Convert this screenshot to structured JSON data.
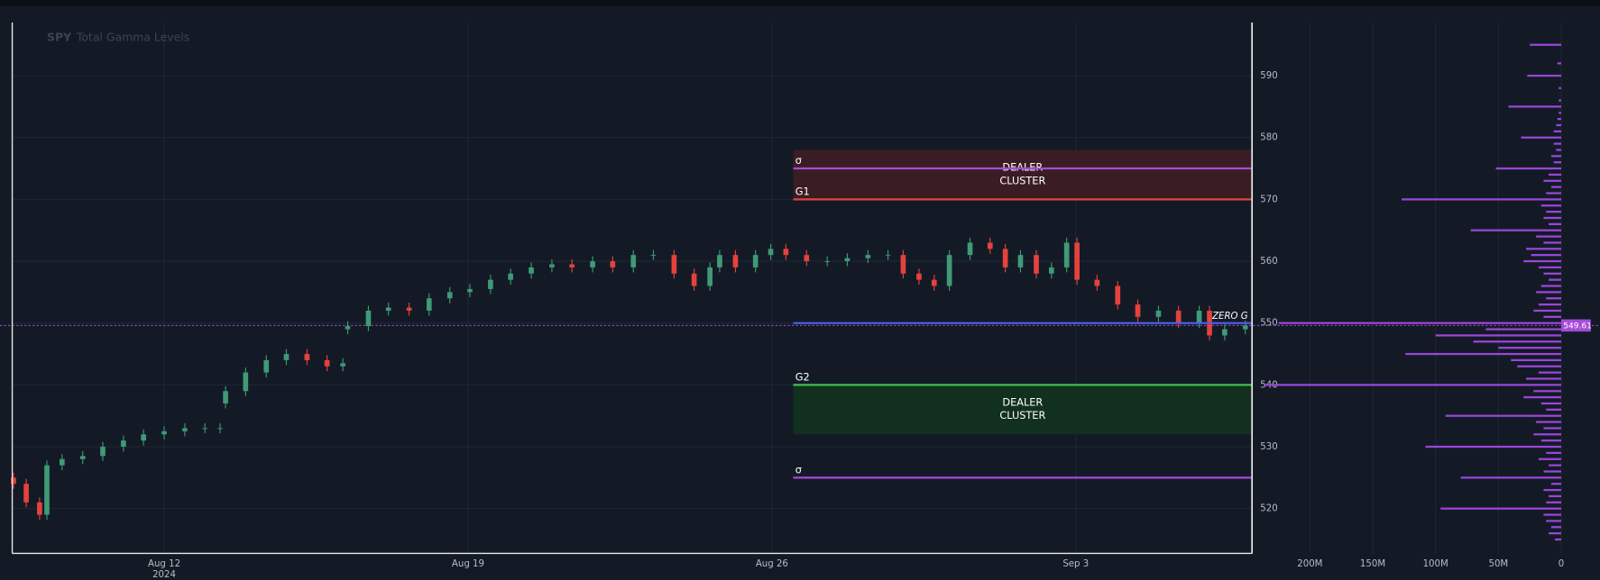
{
  "chart_data": [
    {
      "type": "candlestick",
      "ticker": "SPY",
      "title": "Total Gamma Levels",
      "x": [
        -2.48,
        -2.27,
        -2.05,
        -1.93,
        -1.68,
        -1.34,
        -1.01,
        -0.67,
        -0.34,
        0,
        0.34,
        0.67,
        0.92,
        1.01,
        1.34,
        1.68,
        2.01,
        2.35,
        2.68,
        2.94,
        3.02,
        3.36,
        3.69,
        4.03,
        4.36,
        4.7,
        5.03,
        5.37,
        5.7,
        6.04,
        6.38,
        6.71,
        7.05,
        7.38,
        7.72,
        8.05,
        8.39,
        8.72,
        8.98,
        9.14,
        9.4,
        9.73,
        9.98,
        10.23,
        10.57,
        10.91,
        11.24,
        11.58,
        11.91,
        12.16,
        12.42,
        12.67,
        12.92,
        13.26,
        13.59,
        13.84,
        14.09,
        14.35,
        14.6,
        14.85,
        15.02,
        15.35,
        15.69,
        16.02,
        16.36,
        16.69,
        17.03,
        17.2,
        17.45,
        17.79
      ],
      "open": [
        525,
        524,
        521,
        519,
        527,
        528,
        528.5,
        530,
        531,
        532,
        532.5,
        533,
        533,
        537,
        539,
        542,
        544,
        545,
        544,
        543,
        549,
        549.5,
        552,
        552.5,
        552,
        554,
        555,
        555.5,
        557,
        558,
        559,
        559.5,
        559,
        560,
        559,
        561,
        561,
        558,
        556,
        559,
        561,
        559,
        561,
        562,
        561,
        560,
        560,
        560.5,
        561,
        561,
        558,
        557,
        556,
        561,
        563,
        562,
        559,
        561,
        558,
        559,
        563,
        557,
        556,
        553,
        551,
        552,
        550,
        552,
        548,
        549
      ],
      "high": [
        525.8,
        524.8,
        521.8,
        527.8,
        528.8,
        529.3,
        530.8,
        531.8,
        532.8,
        533.3,
        533.8,
        533.8,
        533.8,
        539.8,
        542.8,
        544.8,
        545.8,
        545.8,
        544.8,
        544.3,
        550.3,
        552.8,
        553.3,
        553.3,
        554.8,
        555.8,
        556.3,
        557.8,
        558.8,
        559.8,
        560.3,
        560.3,
        560.8,
        560.8,
        561.8,
        561.8,
        561.8,
        558.8,
        559.8,
        561.8,
        561.8,
        561.8,
        562.8,
        562.8,
        561.8,
        560.8,
        561.3,
        561.8,
        561.8,
        561.8,
        558.8,
        557.8,
        561.8,
        563.8,
        563.8,
        562.8,
        561.8,
        561.8,
        559.8,
        563.8,
        563.8,
        557.8,
        556.8,
        553.8,
        552.8,
        552.8,
        552.8,
        552.8,
        549.8,
        550.4
      ],
      "low": [
        523.2,
        520.2,
        518.2,
        518.2,
        526.2,
        527.2,
        527.7,
        529.2,
        530.2,
        531.2,
        531.7,
        532.2,
        532.2,
        536.2,
        538.2,
        541.2,
        543.2,
        543.2,
        542.2,
        542.2,
        548.2,
        548.7,
        551.2,
        551.2,
        551.2,
        553.2,
        554.2,
        554.7,
        556.2,
        557.2,
        558.2,
        558.2,
        558.2,
        558.2,
        558.2,
        560.2,
        557.2,
        555.2,
        555.2,
        558.2,
        558.2,
        558.2,
        560.2,
        560.2,
        559.2,
        559.2,
        559.2,
        559.7,
        560.2,
        557.2,
        556.2,
        555.2,
        555.2,
        560.2,
        561.2,
        558.2,
        558.2,
        557.2,
        557.2,
        558.2,
        556.2,
        555.2,
        552.2,
        550.2,
        550.2,
        549.2,
        549.2,
        547.2,
        547.2,
        548.2
      ],
      "close": [
        524,
        521,
        519,
        527,
        528,
        528.5,
        530,
        531,
        532,
        532.5,
        533,
        533,
        533,
        539,
        542,
        544,
        545,
        544,
        543,
        543.5,
        549.5,
        552,
        552.5,
        552,
        554,
        555,
        555.5,
        557,
        558,
        559,
        559.5,
        559,
        560,
        559,
        561,
        561,
        558,
        556,
        559,
        561,
        559,
        561,
        562,
        561,
        560,
        560,
        560.5,
        561,
        561,
        558,
        557,
        556,
        561,
        563,
        562,
        559,
        561,
        558,
        559,
        563,
        557,
        556,
        553,
        551,
        552,
        550,
        552,
        548,
        549,
        549.6
      ],
      "up_color": "#3f9a76",
      "down_color": "#e5423c",
      "xlim": [
        -2.5,
        17.9
      ],
      "xticks": [
        {
          "value": 0,
          "label": "Aug 12"
        },
        {
          "value": 5,
          "label": "Aug 19"
        },
        {
          "value": 10,
          "label": "Aug 26"
        },
        {
          "value": 15,
          "label": "Sep 3"
        }
      ],
      "x_sublabel": "2024",
      "ylim": [
        512.75,
        598.6
      ],
      "yticks": [
        520,
        530,
        540,
        550,
        560,
        570,
        580,
        590
      ],
      "grid": true,
      "levels_start": 10.35,
      "levels": [
        {
          "label": "σ",
          "value": 575,
          "color": "#a64bd6"
        },
        {
          "label": "G1",
          "value": 570,
          "color": "#e0443e"
        },
        {
          "label": "ZERO G",
          "value": 550,
          "color": "#4a5ee0"
        },
        {
          "label": "G2",
          "value": 540,
          "color": "#3fbf48"
        },
        {
          "label": "σ",
          "value": 525,
          "color": "#a64bd6"
        }
      ],
      "zones": [
        {
          "lines": [
            "DEALER",
            "CLUSTER"
          ],
          "from": 570,
          "to": 578,
          "color": "#3a1c24"
        },
        {
          "lines": [
            "DEALER",
            "CLUSTER"
          ],
          "from": 532,
          "to": 540,
          "color": "#11301f"
        }
      ],
      "last_price": 549.61,
      "last_price_color": "#a64bd6"
    },
    {
      "type": "barh",
      "y": [
        515,
        516,
        517,
        518,
        519,
        520,
        521,
        522,
        523,
        524,
        525,
        526,
        527,
        528,
        529,
        530,
        531,
        532,
        533,
        534,
        535,
        536,
        537,
        538,
        539,
        540,
        541,
        542,
        543,
        544,
        545,
        546,
        547,
        548,
        549,
        550,
        551,
        552,
        553,
        554,
        555,
        556,
        557,
        558,
        559,
        560,
        561,
        562,
        563,
        564,
        565,
        566,
        567,
        568,
        569,
        570,
        571,
        572,
        573,
        574,
        575,
        576,
        577,
        578,
        579,
        580,
        581,
        582,
        583,
        584,
        585,
        586,
        587,
        588,
        589,
        590,
        591,
        592,
        593,
        594,
        595
      ],
      "values": [
        5,
        10,
        8,
        12,
        14,
        96,
        12,
        10,
        14,
        8,
        80,
        14,
        10,
        18,
        12,
        108,
        16,
        22,
        14,
        20,
        92,
        12,
        16,
        30,
        22,
        236,
        28,
        18,
        35,
        40,
        124,
        50,
        70,
        100,
        60,
        225,
        14,
        22,
        18,
        12,
        20,
        16,
        10,
        14,
        18,
        30,
        24,
        28,
        14,
        20,
        72,
        10,
        14,
        12,
        16,
        127,
        12,
        8,
        14,
        10,
        52,
        6,
        8,
        4,
        6,
        32,
        6,
        4,
        3,
        2,
        42,
        2,
        0,
        2,
        0,
        27,
        0,
        3,
        0,
        0,
        25
      ],
      "color": "#9b45d8",
      "xlim": [
        242,
        0
      ],
      "xticks": [
        {
          "value": 200,
          "label": "200M"
        },
        {
          "value": 150,
          "label": "150M"
        },
        {
          "value": 100,
          "label": "100M"
        },
        {
          "value": 50,
          "label": "50M"
        },
        0
      ]
    }
  ]
}
